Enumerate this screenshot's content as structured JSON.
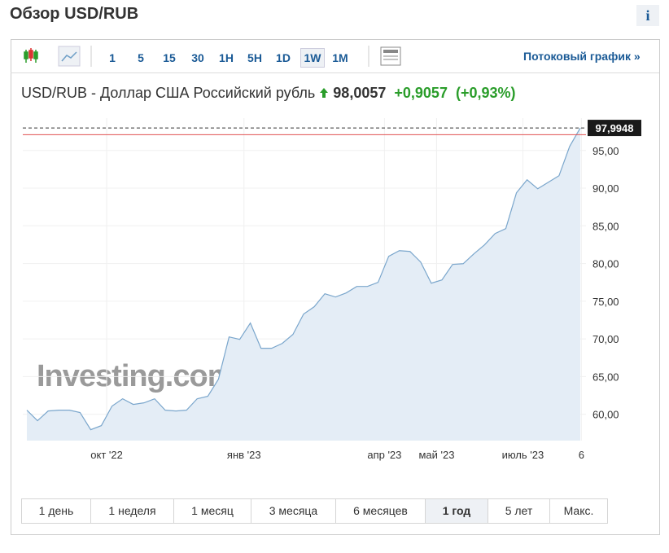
{
  "header": {
    "title": "Обзор USD/RUB",
    "info": "i"
  },
  "toolbar": {
    "intervals": [
      "1",
      "5",
      "15",
      "30",
      "1H",
      "5H",
      "1D",
      "1W",
      "1M"
    ],
    "selected_interval": 7,
    "streaming_link": "Потоковый график »"
  },
  "quote": {
    "name": "USD/RUB - Доллар США Российский рубль",
    "price": "98,0057",
    "change": "+0,9057",
    "change_percent": "(+0,93%)"
  },
  "chart_data": {
    "type": "area",
    "color": "#7aa6cc",
    "fill": "#e4edf6",
    "values": [
      60.54,
      59.14,
      60.43,
      60.54,
      60.54,
      60.22,
      57.95,
      58.49,
      61.08,
      62.05,
      61.3,
      61.51,
      62.05,
      60.54,
      60.43,
      60.54,
      62.05,
      62.38,
      64.65,
      70.26,
      69.94,
      72.1,
      68.75,
      68.75,
      69.4,
      70.59,
      73.29,
      74.26,
      75.99,
      75.56,
      76.1,
      76.96,
      76.96,
      77.5,
      80.96,
      81.71,
      81.6,
      80.2,
      77.39,
      77.82,
      79.88,
      79.98,
      81.28,
      82.47,
      83.98,
      84.63,
      89.38,
      91.11,
      89.92,
      90.79,
      91.65,
      95.54,
      97.9948
    ],
    "ylim": [
      56.5,
      99.3
    ],
    "yticks": [
      {
        "value": 60,
        "label": "60,00"
      },
      {
        "value": 65,
        "label": "65,00"
      },
      {
        "value": 70,
        "label": "70,00"
      },
      {
        "value": 75,
        "label": "75,00"
      },
      {
        "value": 80,
        "label": "80,00"
      },
      {
        "value": 85,
        "label": "85,00"
      },
      {
        "value": 90,
        "label": "90,00"
      },
      {
        "value": 95,
        "label": "95,00"
      }
    ],
    "xlim": [
      0,
      52
    ],
    "xticks": [
      {
        "value": 7.5,
        "label": "окт '22"
      },
      {
        "value": 20.4,
        "label": "янв '23"
      },
      {
        "value": 33.6,
        "label": "апр '23"
      },
      {
        "value": 38.5,
        "label": "май '23"
      },
      {
        "value": 46.6,
        "label": "июль '23"
      },
      {
        "value": 52.1,
        "label": "6"
      }
    ],
    "grid": true,
    "last_value": {
      "value": 97.9948,
      "label": "97,9948"
    },
    "previous_close": 97.1,
    "watermark": "Investing.com"
  },
  "ranges": {
    "buttons": [
      "1 день",
      "1 неделя",
      "1 месяц",
      "3 месяца",
      "6 месяцев",
      "1 год",
      "5 лет",
      "Макс."
    ],
    "selected": 5
  }
}
